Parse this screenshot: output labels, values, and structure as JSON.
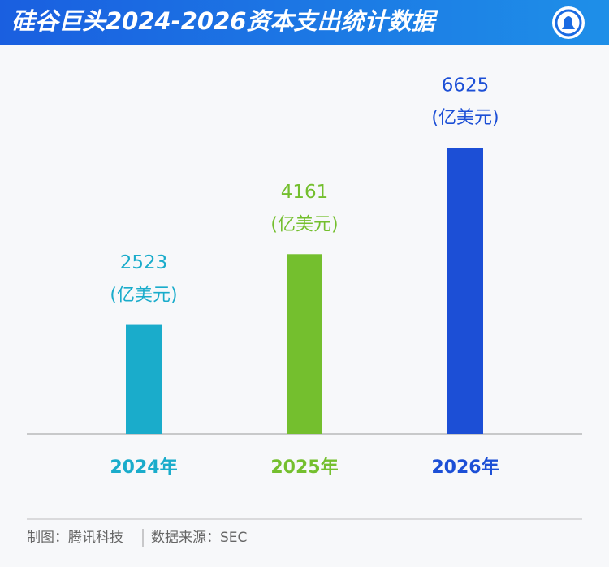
{
  "chart_data": {
    "type": "bar",
    "title": "硅谷巨头2024-2026资本支出统计数据",
    "categories": [
      "2024年",
      "2025年",
      "2026年"
    ],
    "values": [
      2523,
      4161,
      6625
    ],
    "colors": [
      "#1aaccb",
      "#74bf2e",
      "#1c4fd6"
    ],
    "unit": "(亿美元)",
    "credit": "制图：腾讯科技",
    "source": "数据来源：SEC"
  }
}
